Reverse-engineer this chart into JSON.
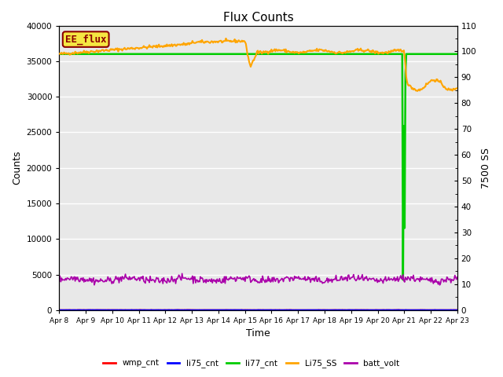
{
  "title": "Flux Counts",
  "xlabel": "Time",
  "ylabel_left": "Counts",
  "ylabel_right": "7500 SS",
  "ylim_left": [
    0,
    40000
  ],
  "ylim_right": [
    0,
    110
  ],
  "background_color": "#e8e8e8",
  "legend_label": "EE_flux",
  "legend_label_color": "#8B0000",
  "legend_box_color": "#f5e642",
  "x_tick_labels": [
    "Apr 8",
    "Apr 9",
    "Apr 10",
    "Apr 11",
    "Apr 12",
    "Apr 13",
    "Apr 14",
    "Apr 15",
    "Apr 16",
    "Apr 17",
    "Apr 18",
    "Apr 19",
    "Apr 20",
    "Apr 21",
    "Apr 22",
    "Apr 23"
  ],
  "series": {
    "wmp_cnt": {
      "color": "#ff0000",
      "lw": 1.2
    },
    "li75_cnt": {
      "color": "#0000ff",
      "lw": 1.2
    },
    "li77_cnt": {
      "color": "#00cc00",
      "lw": 1.8
    },
    "Li75_SS": {
      "color": "#ffa500",
      "lw": 1.5
    },
    "batt_volt": {
      "color": "#aa00aa",
      "lw": 1.2
    }
  },
  "yticks_left": [
    0,
    5000,
    10000,
    15000,
    20000,
    25000,
    30000,
    35000,
    40000
  ],
  "yticks_right": [
    0,
    10,
    20,
    30,
    40,
    50,
    60,
    70,
    80,
    90,
    100,
    110
  ]
}
